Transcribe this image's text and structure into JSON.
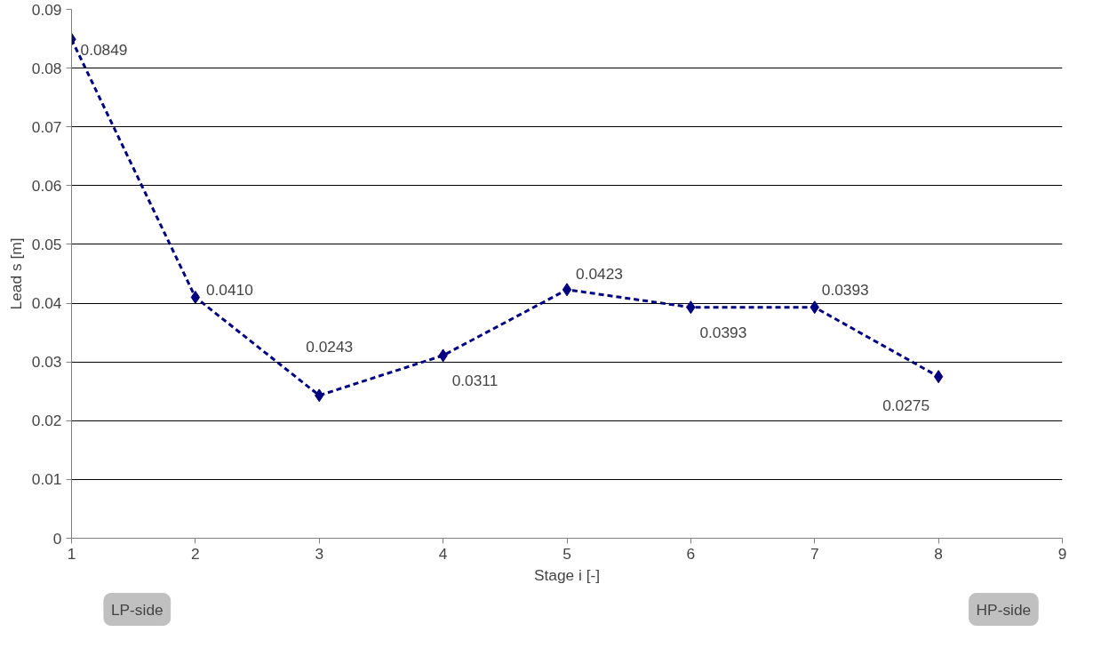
{
  "chart_data": {
    "type": "line",
    "xlabel": "Stage i [-]",
    "ylabel": "Lead s [m]",
    "x": [
      1,
      2,
      3,
      4,
      5,
      6,
      7,
      8
    ],
    "series": [
      {
        "color": "#000080",
        "values": [
          0.0849,
          0.041,
          0.0243,
          0.0311,
          0.0423,
          0.0393,
          0.0393,
          0.0275
        ],
        "value_labels": [
          "0.0849",
          "0.0410",
          "0.0243",
          "0.0311",
          "0.0423",
          "0.0393",
          "0.0393",
          "0.0275"
        ]
      }
    ],
    "xlim": [
      1,
      9
    ],
    "xticks": [
      1,
      2,
      3,
      4,
      5,
      6,
      7,
      8,
      9
    ],
    "ylim": [
      0,
      0.09
    ],
    "yticks": [
      0,
      0.01,
      0.02,
      0.03,
      0.04,
      0.05,
      0.06,
      0.07,
      0.08,
      0.09
    ],
    "grid": "y",
    "marker": "diamond",
    "line_style": "dashed",
    "annotations": [
      "LP-side",
      "HP-side"
    ]
  }
}
